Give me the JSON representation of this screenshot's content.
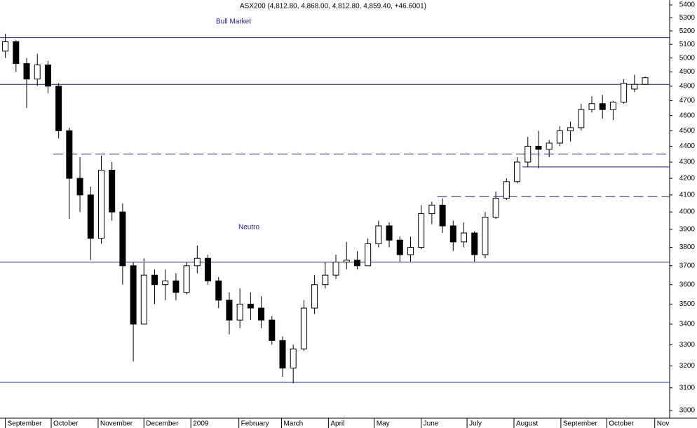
{
  "chart_data": {
    "type": "candlestick",
    "title": "ASX200 (4,812.80, 4,868.00, 4,812.80, 4,859.40, +46.6001)",
    "annotations": [
      "Bull Market",
      "Neutro"
    ],
    "categories": [
      null,
      null,
      null,
      null,
      null,
      null,
      null,
      null,
      null,
      null,
      null,
      null,
      null,
      null,
      null,
      null,
      null,
      null,
      null,
      null,
      null,
      null,
      null,
      null,
      null,
      null,
      null,
      null,
      null,
      null,
      null,
      null,
      null,
      null,
      null,
      null,
      null,
      null,
      null,
      null,
      null,
      null,
      null,
      null,
      null,
      null,
      null,
      null,
      null,
      null,
      null,
      null,
      null,
      null,
      null,
      null,
      null,
      null,
      null,
      null,
      null
    ],
    "open": [
      5050,
      5120,
      4960,
      4850,
      4950,
      4800,
      4500,
      4200,
      4100,
      3850,
      4250,
      4000,
      3700,
      3400,
      3650,
      3600,
      3620,
      3560,
      3700,
      3740,
      3620,
      3520,
      3420,
      3500,
      3480,
      3420,
      3320,
      3190,
      3280,
      3480,
      3600,
      3650,
      3720,
      3730,
      3700,
      3820,
      3920,
      3840,
      3760,
      3800,
      3990,
      4040,
      3920,
      3830,
      3880,
      3760,
      3970,
      4080,
      4180,
      4300,
      4400,
      4380,
      4420,
      4500,
      4520,
      4640,
      4680,
      4640,
      4690,
      4780,
      4812.8
    ],
    "high": [
      5180,
      5130,
      5000,
      5030,
      4980,
      4820,
      4520,
      4330,
      4150,
      4340,
      4300,
      4050,
      3720,
      3740,
      3680,
      3680,
      3660,
      3720,
      3810,
      3760,
      3640,
      3560,
      3580,
      3560,
      3540,
      3440,
      3340,
      3300,
      3520,
      3650,
      3720,
      3760,
      3830,
      3780,
      3850,
      3950,
      3940,
      3860,
      3860,
      4040,
      4060,
      4080,
      3950,
      3940,
      3890,
      4000,
      4120,
      4200,
      4330,
      4460,
      4500,
      4440,
      4530,
      4560,
      4680,
      4730,
      4740,
      4700,
      4850,
      4880,
      4868
    ],
    "low": [
      5000,
      4900,
      4650,
      4800,
      4750,
      4450,
      3960,
      4000,
      3730,
      3820,
      3950,
      3600,
      3220,
      3400,
      3500,
      3520,
      3520,
      3550,
      3660,
      3600,
      3480,
      3350,
      3380,
      3420,
      3380,
      3300,
      3150,
      3120,
      3270,
      3450,
      3580,
      3630,
      3680,
      3680,
      3700,
      3800,
      3800,
      3720,
      3720,
      3790,
      3930,
      3880,
      3780,
      3800,
      3720,
      3740,
      3960,
      4070,
      4170,
      4270,
      4260,
      4330,
      4400,
      4430,
      4500,
      4620,
      4580,
      4570,
      4680,
      4760,
      4812.8
    ],
    "close": [
      5120,
      4960,
      4850,
      4950,
      4800,
      4500,
      4200,
      4100,
      3850,
      4250,
      4000,
      3700,
      3400,
      3650,
      3600,
      3620,
      3560,
      3700,
      3740,
      3620,
      3520,
      3420,
      3500,
      3480,
      3420,
      3320,
      3190,
      3280,
      3480,
      3600,
      3650,
      3720,
      3730,
      3700,
      3820,
      3920,
      3840,
      3760,
      3800,
      3990,
      4040,
      3920,
      3830,
      3880,
      3760,
      3970,
      4080,
      4180,
      4300,
      4400,
      4380,
      4420,
      4500,
      4520,
      4640,
      4680,
      4640,
      4690,
      4820,
      4812.8,
      4859.4
    ],
    "up_color": "#ffffff",
    "down_color": "#000000",
    "line_color": "#000000",
    "xlim": [
      -0.5,
      62.3
    ],
    "xticks": [
      {
        "value": 0,
        "label": "September"
      },
      {
        "value": 4.3,
        "label": "October"
      },
      {
        "value": 8.7,
        "label": "November"
      },
      {
        "value": 13,
        "label": "December"
      },
      {
        "value": 17.4,
        "label": "2009"
      },
      {
        "value": 21.9,
        "label": "February"
      },
      {
        "value": 25.9,
        "label": "March"
      },
      {
        "value": 30.3,
        "label": "April"
      },
      {
        "value": 34.6,
        "label": "May"
      },
      {
        "value": 39,
        "label": "June"
      },
      {
        "value": 43.3,
        "label": "July"
      },
      {
        "value": 47.7,
        "label": "August"
      },
      {
        "value": 52.1,
        "label": "September"
      },
      {
        "value": 56.4,
        "label": "October"
      },
      {
        "value": 60.9,
        "label": "Nov"
      }
    ],
    "ylim": [
      3000,
      5400
    ],
    "log_scale": true,
    "yticks": [
      3000,
      3100,
      3200,
      3300,
      3400,
      3500,
      3600,
      3700,
      3800,
      3900,
      4000,
      4100,
      4200,
      4300,
      4400,
      4500,
      4600,
      4700,
      4800,
      4900,
      5000,
      5100,
      5200,
      5300,
      5400
    ],
    "hlines_color": "#1c1c9c",
    "hlines": [
      {
        "value": 5150,
        "style": "solid"
      },
      {
        "value": 4812.8,
        "style": "solid"
      },
      {
        "value": 4350,
        "style": "dashed",
        "from": 4.5
      },
      {
        "value": 4270,
        "style": "solid",
        "from": 48.5
      },
      {
        "value": 4090,
        "style": "dashed",
        "from": 40.5
      },
      {
        "value": 3720,
        "style": "solid"
      },
      {
        "value": 3125,
        "style": "solid"
      }
    ]
  }
}
